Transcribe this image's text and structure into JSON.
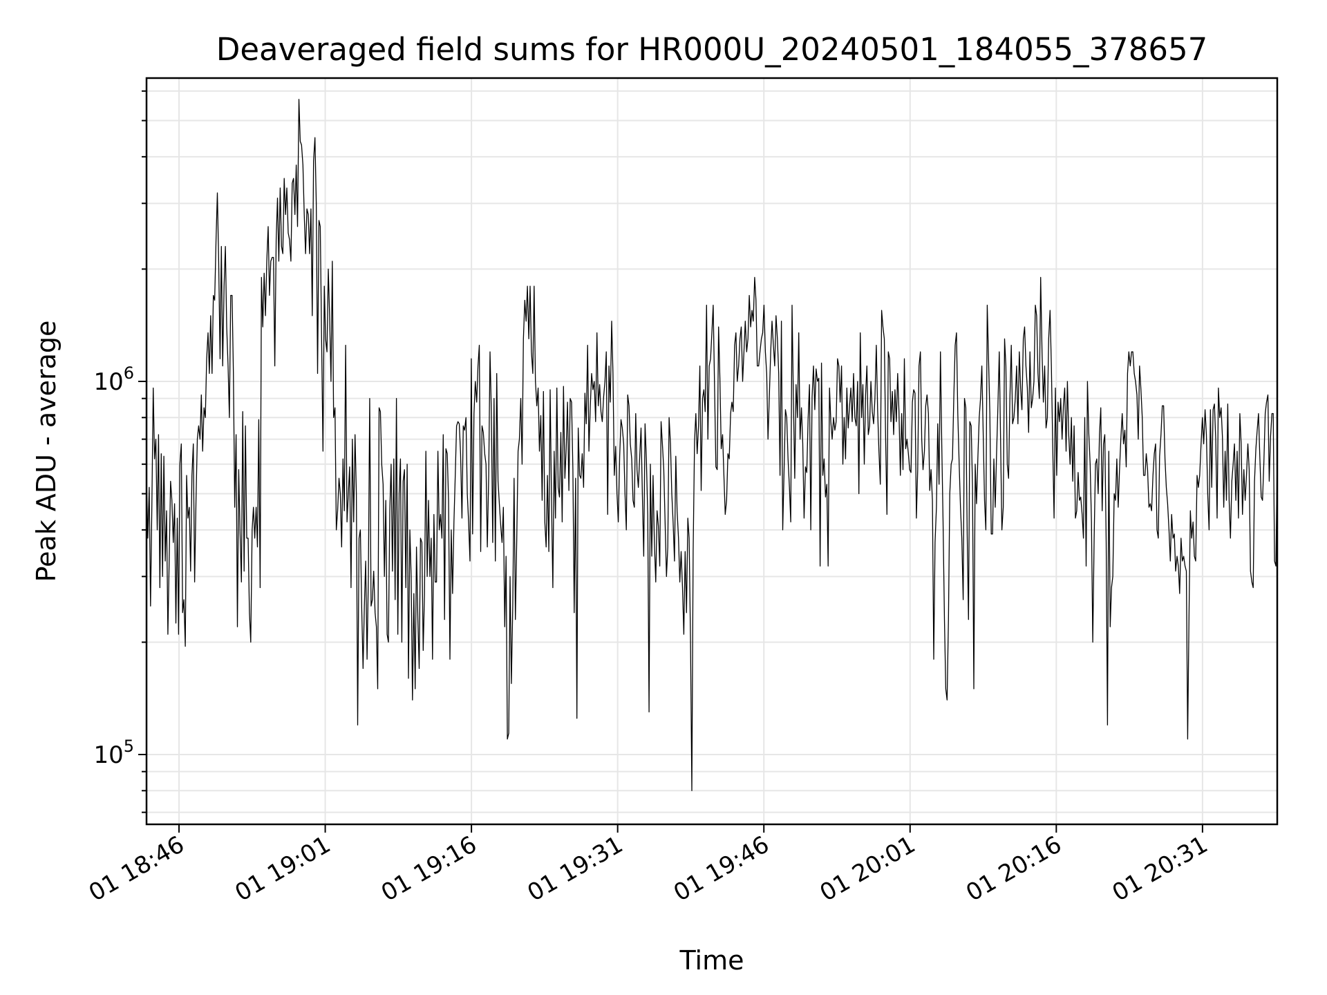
{
  "chart_data": {
    "type": "line",
    "title": "Deaveraged field sums for HR000U_20240501_184055_378657",
    "xlabel": "Time",
    "ylabel": "Peak ADU - average",
    "y_scale": "log",
    "ylim": [
      65000,
      6500000
    ],
    "xlim": [
      "2024-05-01 18:42:40",
      "2024-05-01 20:38:40"
    ],
    "grid": true,
    "x_ticks": [
      {
        "label": "01 18:46",
        "time": "2024-05-01 18:46"
      },
      {
        "label": "01 19:01",
        "time": "2024-05-01 19:01"
      },
      {
        "label": "01 19:16",
        "time": "2024-05-01 19:16"
      },
      {
        "label": "01 19:31",
        "time": "2024-05-01 19:31"
      },
      {
        "label": "01 19:46",
        "time": "2024-05-01 19:46"
      },
      {
        "label": "01 20:01",
        "time": "2024-05-01 20:01"
      },
      {
        "label": "01 20:16",
        "time": "2024-05-01 20:16"
      },
      {
        "label": "01 20:31",
        "time": "2024-05-01 20:31"
      }
    ],
    "y_ticks": [
      {
        "base": "10",
        "exp": "5",
        "value": 100000
      },
      {
        "base": "10",
        "exp": "6",
        "value": 1000000
      }
    ],
    "series": [
      {
        "color": "#000000",
        "t_start": "2024-05-01 18:42:40",
        "t_end": "2024-05-01 20:38:40",
        "values": [
          550000,
          380000,
          520000,
          250000,
          460000,
          960000,
          620000,
          700000,
          400000,
          720000,
          280000,
          640000,
          300000,
          630000,
          330000,
          450000,
          210000,
          340000,
          540000,
          480000,
          370000,
          470000,
          225000,
          430000,
          210000,
          600000,
          680000,
          240000,
          260000,
          195000,
          560000,
          430000,
          460000,
          310000,
          560000,
          680000,
          290000,
          480000,
          700000,
          760000,
          700000,
          920000,
          650000,
          850000,
          800000,
          1150000,
          1350000,
          1050000,
          1500000,
          1050000,
          1700000,
          1650000,
          2400000,
          3200000,
          2100000,
          1150000,
          2300000,
          1100000,
          1800000,
          2300000,
          1400000,
          1100000,
          800000,
          1700000,
          1700000,
          1050000,
          460000,
          720000,
          220000,
          580000,
          390000,
          290000,
          830000,
          310000,
          760000,
          380000,
          380000,
          240000,
          200000,
          400000,
          460000,
          380000,
          460000,
          360000,
          790000,
          280000,
          1900000,
          1400000,
          1950000,
          1500000,
          2100000,
          2600000,
          1700000,
          2100000,
          2150000,
          2150000,
          1100000,
          2400000,
          3100000,
          2100000,
          3300000,
          2300000,
          2200000,
          3500000,
          2800000,
          3300000,
          2500000,
          2400000,
          2100000,
          3400000,
          3500000,
          2800000,
          3800000,
          2600000,
          5700000,
          4400000,
          4300000,
          3800000,
          2800000,
          2200000,
          2900000,
          2800000,
          2200000,
          2900000,
          1500000,
          3900000,
          4500000,
          3000000,
          1050000,
          2700000,
          2600000,
          1300000,
          650000,
          1800000,
          1300000,
          1200000,
          2000000,
          1500000,
          1000000,
          2100000,
          800000,
          850000,
          400000,
          450000,
          550000,
          500000,
          360000,
          620000,
          450000,
          1250000,
          420000,
          500000,
          590000,
          280000,
          700000,
          420000,
          720000,
          500000,
          120000,
          380000,
          400000,
          250000,
          170000,
          250000,
          330000,
          180000,
          300000,
          900000,
          250000,
          260000,
          310000,
          240000,
          220000,
          150000,
          850000,
          830000,
          600000,
          530000,
          300000,
          480000,
          210000,
          200000,
          450000,
          600000,
          310000,
          620000,
          260000,
          900000,
          210000,
          500000,
          620000,
          200000,
          540000,
          580000,
          280000,
          600000,
          160000,
          400000,
          300000,
          140000,
          270000,
          150000,
          360000,
          230000,
          170000,
          380000,
          370000,
          190000,
          270000,
          650000,
          300000,
          480000,
          300000,
          380000,
          180000,
          440000,
          290000,
          290000,
          650000,
          400000,
          440000,
          380000,
          720000,
          230000,
          660000,
          640000,
          480000,
          180000,
          400000,
          270000,
          420000,
          560000,
          760000,
          780000,
          770000,
          640000,
          430000,
          760000,
          740000,
          800000,
          500000,
          420000,
          330000,
          1150000,
          390000,
          820000,
          1000000,
          880000,
          1100000,
          1250000,
          350000,
          760000,
          730000,
          640000,
          600000,
          360000,
          560000,
          1200000,
          830000,
          370000,
          900000,
          330000,
          1050000,
          540000,
          470000,
          410000,
          370000,
          460000,
          220000,
          340000,
          110000,
          114000,
          300000,
          155000,
          250000,
          550000,
          230000,
          380000,
          650000,
          700000,
          900000,
          600000,
          1300000,
          1650000,
          1450000,
          1800000,
          1300000,
          1800000,
          1200000,
          1050000,
          1800000,
          1000000,
          860000,
          960000,
          650000,
          810000,
          480000,
          940000,
          420000,
          360000,
          560000,
          350000,
          950000,
          490000,
          280000,
          650000,
          430000,
          960000,
          520000,
          490000,
          730000,
          420000,
          970000,
          550000,
          660000,
          880000,
          510000,
          900000,
          880000,
          580000,
          240000,
          550000,
          125000,
          750000,
          560000,
          550000,
          640000,
          520000,
          930000,
          770000,
          1250000,
          650000,
          850000,
          1050000,
          950000,
          1000000,
          780000,
          1350000,
          860000,
          980000,
          830000,
          780000,
          910000,
          1000000,
          1200000,
          440000,
          1100000,
          880000,
          1450000,
          1050000,
          560000,
          670000,
          500000,
          420000,
          630000,
          790000,
          750000,
          680000,
          500000,
          400000,
          920000,
          860000,
          680000,
          620000,
          480000,
          460000,
          820000,
          580000,
          520000,
          630000,
          750000,
          500000,
          340000,
          770000,
          620000,
          440000,
          130000,
          600000,
          340000,
          560000,
          370000,
          290000,
          450000,
          410000,
          320000,
          780000,
          680000,
          580000,
          420000,
          300000,
          360000,
          800000,
          680000,
          500000,
          420000,
          330000,
          630000,
          450000,
          380000,
          290000,
          350000,
          280000,
          210000,
          350000,
          240000,
          430000,
          380000,
          200000,
          80000,
          350000,
          690000,
          820000,
          640000,
          760000,
          1100000,
          510000,
          900000,
          950000,
          830000,
          1600000,
          700000,
          1100000,
          1150000,
          1350000,
          1600000,
          960000,
          590000,
          580000,
          1400000,
          1020000,
          660000,
          720000,
          560000,
          440000,
          480000,
          640000,
          620000,
          820000,
          880000,
          830000,
          1250000,
          1350000,
          1000000,
          1100000,
          1300000,
          1400000,
          1000000,
          1200000,
          1450000,
          1200000,
          1300000,
          1700000,
          1400000,
          1550000,
          1450000,
          1900000,
          1650000,
          1100000,
          1100000,
          1200000,
          1300000,
          1350000,
          1600000,
          1200000,
          1050000,
          700000,
          920000,
          1200000,
          1450000,
          1250000,
          1100000,
          1500000,
          1300000,
          1050000,
          560000,
          1450000,
          400000,
          570000,
          840000,
          800000,
          620000,
          520000,
          420000,
          1600000,
          880000,
          550000,
          980000,
          800000,
          1350000,
          700000,
          850000,
          680000,
          430000,
          590000,
          570000,
          790000,
          980000,
          400000,
          910000,
          1100000,
          840000,
          1080000,
          1000000,
          1020000,
          320000,
          1120000,
          560000,
          620000,
          490000,
          530000,
          320000,
          960000,
          780000,
          700000,
          800000,
          740000,
          780000,
          1150000,
          1100000,
          880000,
          1100000,
          600000,
          800000,
          620000,
          960000,
          750000,
          860000,
          960000,
          780000,
          1050000,
          800000,
          760000,
          1000000,
          500000,
          1350000,
          800000,
          980000,
          600000,
          920000,
          1100000,
          720000,
          760000,
          1000000,
          830000,
          770000,
          900000,
          1250000,
          840000,
          650000,
          530000,
          1550000,
          1400000,
          1300000,
          700000,
          440000,
          1200000,
          1150000,
          780000,
          940000,
          720000,
          950000,
          780000,
          1050000,
          830000,
          560000,
          820000,
          580000,
          1150000,
          660000,
          700000,
          640000,
          580000,
          570000,
          880000,
          950000,
          930000,
          430000,
          580000,
          1100000,
          1200000,
          700000,
          580000,
          650000,
          860000,
          920000,
          820000,
          510000,
          580000,
          480000,
          180000,
          370000,
          460000,
          770000,
          530000,
          1200000,
          680000,
          420000,
          230000,
          150000,
          140000,
          230000,
          500000,
          600000,
          620000,
          900000,
          1250000,
          1350000,
          820000,
          600000,
          460000,
          380000,
          260000,
          900000,
          850000,
          390000,
          230000,
          780000,
          760000,
          520000,
          150000,
          600000,
          470000,
          620000,
          800000,
          900000,
          1100000,
          720000,
          480000,
          400000,
          1600000,
          1150000,
          820000,
          390000,
          390000,
          620000,
          460000,
          640000,
          850000,
          1200000,
          700000,
          400000,
          460000,
          1300000,
          1100000,
          600000,
          550000,
          900000,
          1250000,
          770000,
          800000,
          900000,
          1100000,
          770000,
          1200000,
          960000,
          840000,
          1300000,
          1400000,
          1100000,
          960000,
          730000,
          1200000,
          850000,
          900000,
          1000000,
          1600000,
          1500000,
          1050000,
          900000,
          1900000,
          1200000,
          880000,
          1100000,
          750000,
          800000,
          1300000,
          1550000,
          1100000,
          680000,
          430000,
          960000,
          560000,
          880000,
          780000,
          900000,
          700000,
          860000,
          960000,
          650000,
          1000000,
          720000,
          600000,
          800000,
          540000,
          760000,
          430000,
          450000,
          570000,
          480000,
          490000,
          440000,
          380000,
          800000,
          320000,
          1000000,
          730000,
          600000,
          420000,
          200000,
          380000,
          600000,
          620000,
          500000,
          720000,
          850000,
          450000,
          680000,
          720000,
          370000,
          120000,
          650000,
          220000,
          280000,
          300000,
          500000,
          480000,
          620000,
          460000,
          580000,
          700000,
          820000,
          680000,
          740000,
          590000,
          1050000,
          1200000,
          1100000,
          1200000,
          1200000,
          1050000,
          1000000,
          920000,
          700000,
          1100000,
          950000,
          800000,
          560000,
          560000,
          640000,
          580000,
          460000,
          470000,
          450000,
          560000,
          640000,
          680000,
          400000,
          380000,
          630000,
          720000,
          860000,
          860000,
          620000,
          520000,
          470000,
          400000,
          330000,
          440000,
          380000,
          390000,
          310000,
          340000,
          320000,
          270000,
          380000,
          330000,
          340000,
          320000,
          310000,
          110000,
          240000,
          450000,
          380000,
          420000,
          340000,
          330000,
          560000,
          520000,
          560000,
          680000,
          800000,
          680000,
          840000,
          720000,
          500000,
          400000,
          840000,
          520000,
          840000,
          870000,
          700000,
          430000,
          960000,
          800000,
          850000,
          710000,
          460000,
          650000,
          480000,
          870000,
          480000,
          380000,
          540000,
          600000,
          680000,
          480000,
          650000,
          430000,
          820000,
          680000,
          440000,
          580000,
          480000,
          560000,
          680000,
          580000,
          310000,
          290000,
          280000,
          540000,
          660000,
          740000,
          820000,
          620000,
          490000,
          480000,
          610000,
          820000,
          880000,
          920000,
          540000,
          710000,
          820000,
          820000,
          330000,
          320000,
          640000
        ]
      }
    ]
  }
}
